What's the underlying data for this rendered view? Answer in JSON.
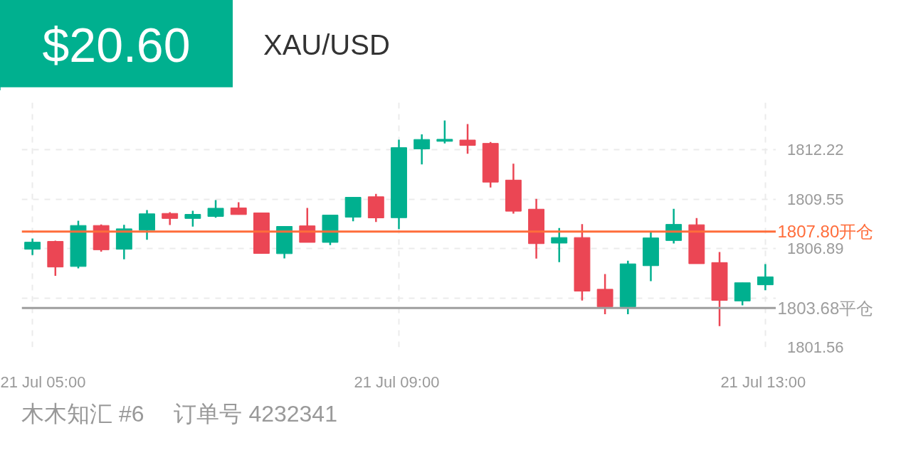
{
  "chart_data": {
    "type": "candlestick",
    "title": "$20.60",
    "subtitle": "XAU/USD",
    "annotations": [
      "木木知汇 #6",
      "订单号 4232341"
    ],
    "categories": [
      "21 Jul  05:00",
      null,
      null,
      null,
      null,
      null,
      null,
      null,
      null,
      null,
      null,
      null,
      null,
      null,
      null,
      null,
      "21 Jul  09:00",
      null,
      null,
      null,
      null,
      null,
      null,
      null,
      null,
      null,
      null,
      null,
      null,
      null,
      null,
      null,
      "21 Jul  13:00"
    ],
    "ohlc": [
      [
        1806.85,
        1807.43,
        1806.54,
        1807.23
      ],
      [
        1807.27,
        1807.31,
        1805.41,
        1805.89
      ],
      [
        1805.92,
        1808.39,
        1805.82,
        1808.13
      ],
      [
        1808.13,
        1808.19,
        1806.72,
        1806.82
      ],
      [
        1806.85,
        1808.17,
        1806.31,
        1807.95
      ],
      [
        1807.88,
        1808.96,
        1807.36,
        1808.76
      ],
      [
        1808.78,
        1808.85,
        1808.16,
        1808.51
      ],
      [
        1808.51,
        1808.92,
        1808.07,
        1808.73
      ],
      [
        1808.62,
        1809.5,
        1808.55,
        1809.06
      ],
      [
        1809.08,
        1809.38,
        1808.72,
        1808.72
      ],
      [
        1808.81,
        1808.81,
        1806.62,
        1806.62
      ],
      [
        1806.61,
        1808.08,
        1806.35,
        1808.08
      ],
      [
        1808.11,
        1809.08,
        1807.22,
        1807.22
      ],
      [
        1807.22,
        1808.69,
        1807.07,
        1808.69
      ],
      [
        1808.58,
        1809.65,
        1808.36,
        1809.65
      ],
      [
        1809.68,
        1809.83,
        1808.32,
        1808.54
      ],
      [
        1808.55,
        1812.76,
        1807.94,
        1812.33
      ],
      [
        1812.26,
        1813.05,
        1811.43,
        1812.77
      ],
      [
        1812.67,
        1813.79,
        1812.56,
        1812.78
      ],
      [
        1812.74,
        1813.6,
        1812.0,
        1812.45
      ],
      [
        1812.56,
        1812.63,
        1810.18,
        1810.47
      ],
      [
        1810.58,
        1811.46,
        1808.77,
        1808.9
      ],
      [
        1809.01,
        1809.57,
        1806.34,
        1807.15
      ],
      [
        1807.18,
        1807.99,
        1806.15,
        1807.48
      ],
      [
        1807.48,
        1808.2,
        1804.08,
        1804.59
      ],
      [
        1804.69,
        1805.51,
        1803.34,
        1803.75
      ],
      [
        1803.75,
        1806.23,
        1803.34,
        1806.06
      ],
      [
        1805.96,
        1807.78,
        1805.13,
        1807.46
      ],
      [
        1807.32,
        1809.03,
        1807.16,
        1808.19
      ],
      [
        1808.17,
        1808.53,
        1806.07,
        1806.07
      ],
      [
        1806.13,
        1806.7,
        1802.7,
        1804.09
      ],
      [
        1804.06,
        1805.04,
        1803.82,
        1805.04
      ],
      [
        1804.93,
        1806.05,
        1804.64,
        1805.36
      ]
    ],
    "colors": [
      "#00b08f",
      "#eb4654",
      "#00b08f",
      "#eb4654",
      "#00b08f",
      "#00b08f",
      "#eb4654",
      "#00b08f",
      "#00b08f",
      "#eb4654",
      "#eb4654",
      "#00b08f",
      "#eb4654",
      "#00b08f",
      "#00b08f",
      "#eb4654",
      "#00b08f",
      "#00b08f",
      "#00b08f",
      "#eb4654",
      "#eb4654",
      "#eb4654",
      "#eb4654",
      "#00b08f",
      "#eb4654",
      "#eb4654",
      "#00b08f",
      "#00b08f",
      "#00b08f",
      "#eb4654",
      "#eb4654",
      "#00b08f",
      "#00b08f"
    ],
    "ylim": [
      1801.56,
      1814.83
    ],
    "yticks": [
      1801.56,
      {
        "value": 1804.225,
        "label": null
      },
      1806.89,
      1809.55,
      1812.22
    ],
    "ref_lines": [
      {
        "axis": "y",
        "value": 1807.8,
        "label": "1807.80开仓",
        "color": "#ff6d3b"
      },
      {
        "axis": "y",
        "value": 1803.68,
        "label": "1803.68平仓",
        "color": "#9e9e9e"
      }
    ],
    "grid": true
  }
}
